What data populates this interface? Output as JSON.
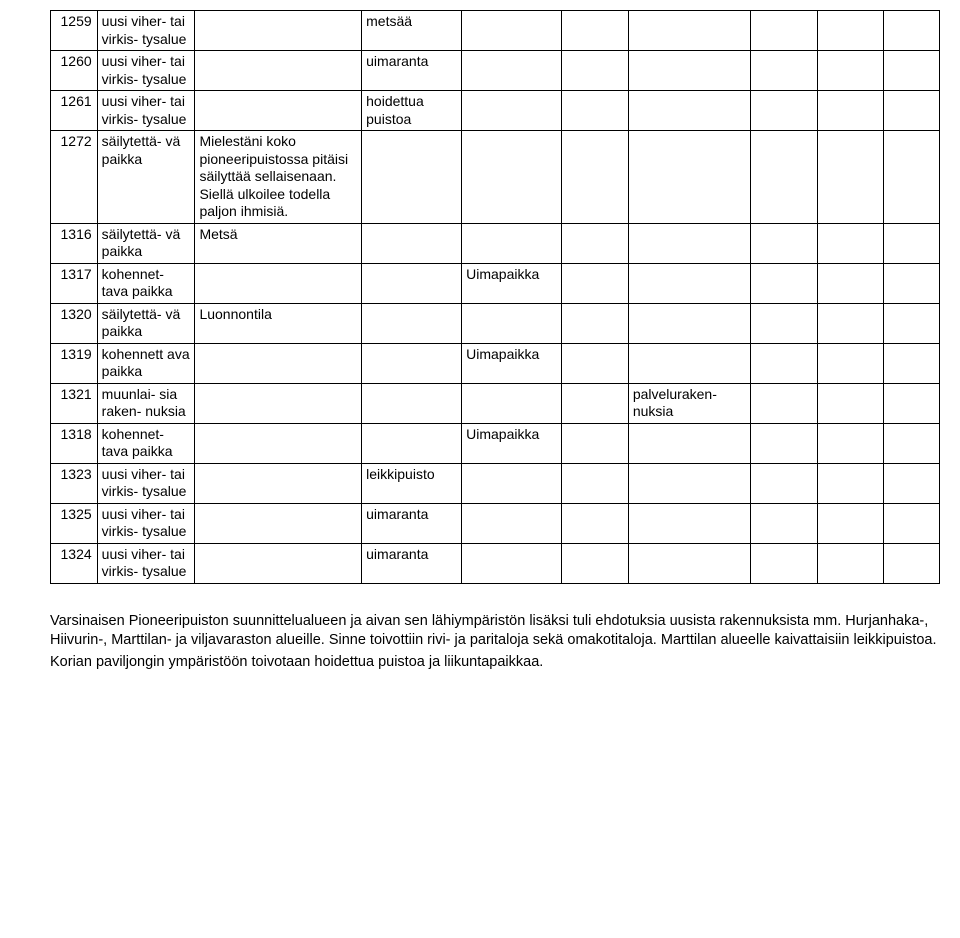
{
  "table": {
    "columns": 10,
    "rows": [
      {
        "id": "1259",
        "cat": "uusi viher- tai virkis- tysalue",
        "desc": "",
        "c4": "metsää",
        "c5": "",
        "c6": "",
        "c7": "",
        "c8": "",
        "c9": "",
        "c10": ""
      },
      {
        "id": "1260",
        "cat": "uusi viher- tai virkis- tysalue",
        "desc": "",
        "c4": "uimaranta",
        "c5": "",
        "c6": "",
        "c7": "",
        "c8": "",
        "c9": "",
        "c10": ""
      },
      {
        "id": "1261",
        "cat": "uusi viher- tai virkis- tysalue",
        "desc": "",
        "c4": "hoidettua puistoa",
        "c5": "",
        "c6": "",
        "c7": "",
        "c8": "",
        "c9": "",
        "c10": ""
      },
      {
        "id": "1272",
        "cat": "säilytettä- vä paikka",
        "desc": "Mielestäni koko pioneeripuistossa pitäisi säilyttää sellaisenaan. Siellä ulkoilee todella paljon ihmisiä.",
        "c4": "",
        "c5": "",
        "c6": "",
        "c7": "",
        "c8": "",
        "c9": "",
        "c10": ""
      },
      {
        "id": "1316",
        "cat": "säilytettä- vä paikka",
        "desc": "Metsä",
        "c4": "",
        "c5": "",
        "c6": "",
        "c7": "",
        "c8": "",
        "c9": "",
        "c10": ""
      },
      {
        "id": "1317",
        "cat": "kohennet- tava paikka",
        "desc": "",
        "c4": "",
        "c5": "Uimapaikka",
        "c6": "",
        "c7": "",
        "c8": "",
        "c9": "",
        "c10": ""
      },
      {
        "id": "1320",
        "cat": "säilytettä- vä paikka",
        "desc": "Luonnontila",
        "c4": "",
        "c5": "",
        "c6": "",
        "c7": "",
        "c8": "",
        "c9": "",
        "c10": ""
      },
      {
        "id": "1319",
        "cat": "kohennett ava paikka",
        "desc": "",
        "c4": "",
        "c5": "Uimapaikka",
        "c6": "",
        "c7": "",
        "c8": "",
        "c9": "",
        "c10": ""
      },
      {
        "id": "1321",
        "cat": "muunlai- sia raken- nuksia",
        "desc": "",
        "c4": "",
        "c5": "",
        "c6": "",
        "c7": "palveluraken- nuksia",
        "c8": "",
        "c9": "",
        "c10": ""
      },
      {
        "id": "1318",
        "cat": "kohennet- tava paikka",
        "desc": "",
        "c4": "",
        "c5": "Uimapaikka",
        "c6": "",
        "c7": "",
        "c8": "",
        "c9": "",
        "c10": ""
      },
      {
        "id": "1323",
        "cat": "uusi viher- tai virkis- tysalue",
        "desc": "",
        "c4": "leikkipuisto",
        "c5": "",
        "c6": "",
        "c7": "",
        "c8": "",
        "c9": "",
        "c10": ""
      },
      {
        "id": "1325",
        "cat": "uusi viher- tai virkis- tysalue",
        "desc": "",
        "c4": "uimaranta",
        "c5": "",
        "c6": "",
        "c7": "",
        "c8": "",
        "c9": "",
        "c10": ""
      },
      {
        "id": "1324",
        "cat": "uusi viher- tai virkis- tysalue",
        "desc": "",
        "c4": "uimaranta",
        "c5": "",
        "c6": "",
        "c7": "",
        "c8": "",
        "c9": "",
        "c10": ""
      }
    ]
  },
  "paragraphs": [
    "Varsinaisen Pioneeripuiston suunnittelualueen ja aivan sen lähiympäristön lisäksi tuli ehdotuksia uusista rakennuksista mm. Hurjanhaka-, Hiivurin-, Marttilan- ja  viljavaraston alueille. Sinne toivottiin rivi- ja paritaloja sekä omakotitaloja. Marttilan alueelle kaivattaisiin leikkipuistoa.",
    "Korian paviljongin ympäristöön toivotaan hoidettua puistoa ja liikuntapaikkaa."
  ]
}
